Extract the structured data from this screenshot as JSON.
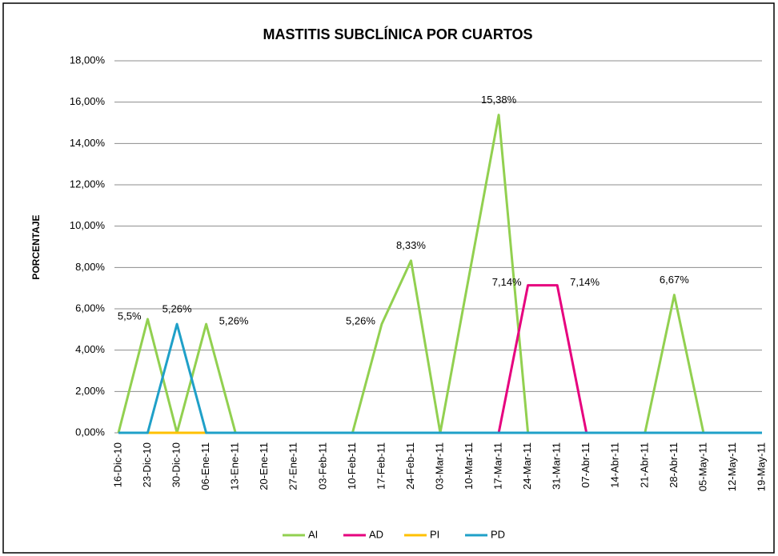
{
  "chart_data": {
    "type": "line",
    "title": "MASTITIS SUBCLÍNICA POR CUARTOS",
    "y_label": "PORCENTAJE",
    "categories": [
      "16-Dic-10",
      "23-Dic-10",
      "30-Dic-10",
      "06-Ene-11",
      "13-Ene-11",
      "20-Ene-11",
      "27-Ene-11",
      "03-Feb-11",
      "10-Feb-11",
      "17-Feb-11",
      "24-Feb-11",
      "03-Mar-11",
      "10-Mar-11",
      "17-Mar-11",
      "24-Mar-11",
      "31-Mar-11",
      "07-Abr-11",
      "14-Abr-11",
      "21-Abr-11",
      "28-Abr-11",
      "05-May-11",
      "12-May-11",
      "19-May-11"
    ],
    "series": [
      {
        "name": "AI",
        "color": "#92d050",
        "values": [
          0,
          5.5,
          0,
          5.26,
          0,
          0,
          0,
          0,
          0,
          5.26,
          8.33,
          0,
          7.69,
          15.38,
          0,
          0,
          0,
          0,
          0,
          6.67,
          0,
          0,
          0
        ],
        "value_labels": [
          null,
          "5,5%",
          null,
          "5,26%",
          null,
          null,
          null,
          null,
          null,
          "5,26%",
          "8,33%",
          null,
          null,
          "15,38%",
          null,
          null,
          null,
          null,
          null,
          "6,67%",
          null,
          null,
          null
        ]
      },
      {
        "name": "AD",
        "color": "#e6007e",
        "values": [
          0,
          0,
          0,
          0,
          0,
          0,
          0,
          0,
          0,
          0,
          0,
          0,
          0,
          0,
          7.14,
          7.14,
          0,
          0,
          0,
          0,
          0,
          0,
          0
        ],
        "value_labels": [
          null,
          null,
          null,
          null,
          null,
          null,
          null,
          null,
          null,
          null,
          null,
          null,
          null,
          null,
          "7,14%",
          "7,14%",
          null,
          null,
          null,
          null,
          null,
          null,
          null
        ]
      },
      {
        "name": "PI",
        "color": "#ffc000",
        "values": [
          0,
          0,
          0,
          0,
          0,
          0,
          0,
          0,
          0,
          0,
          0,
          0,
          0,
          0,
          0,
          0,
          0,
          0,
          0,
          0,
          0,
          0,
          0
        ]
      },
      {
        "name": "PD",
        "color": "#1fa0c8",
        "values": [
          0,
          0,
          5.26,
          0,
          0,
          0,
          0,
          0,
          0,
          0,
          0,
          0,
          0,
          0,
          0,
          0,
          0,
          0,
          0,
          0,
          0,
          0,
          0
        ],
        "value_labels": [
          null,
          null,
          "5,26%",
          null,
          null,
          null,
          null,
          null,
          null,
          null,
          null,
          null,
          null,
          null,
          null,
          null,
          null,
          null,
          null,
          null,
          null,
          null,
          null
        ]
      }
    ],
    "ylim": [
      0,
      18
    ],
    "yticks": [
      {
        "value": 0,
        "label": "0,00%"
      },
      {
        "value": 2,
        "label": "2,00%"
      },
      {
        "value": 4,
        "label": "4,00%"
      },
      {
        "value": 6,
        "label": "6,00%"
      },
      {
        "value": 8,
        "label": "8,00%"
      },
      {
        "value": 10,
        "label": "10,00%"
      },
      {
        "value": 12,
        "label": "12,00%"
      },
      {
        "value": 14,
        "label": "14,00%"
      },
      {
        "value": 16,
        "label": "16,00%"
      },
      {
        "value": 18,
        "label": "18,00%"
      }
    ],
    "grid": true,
    "legend": "bottom"
  }
}
